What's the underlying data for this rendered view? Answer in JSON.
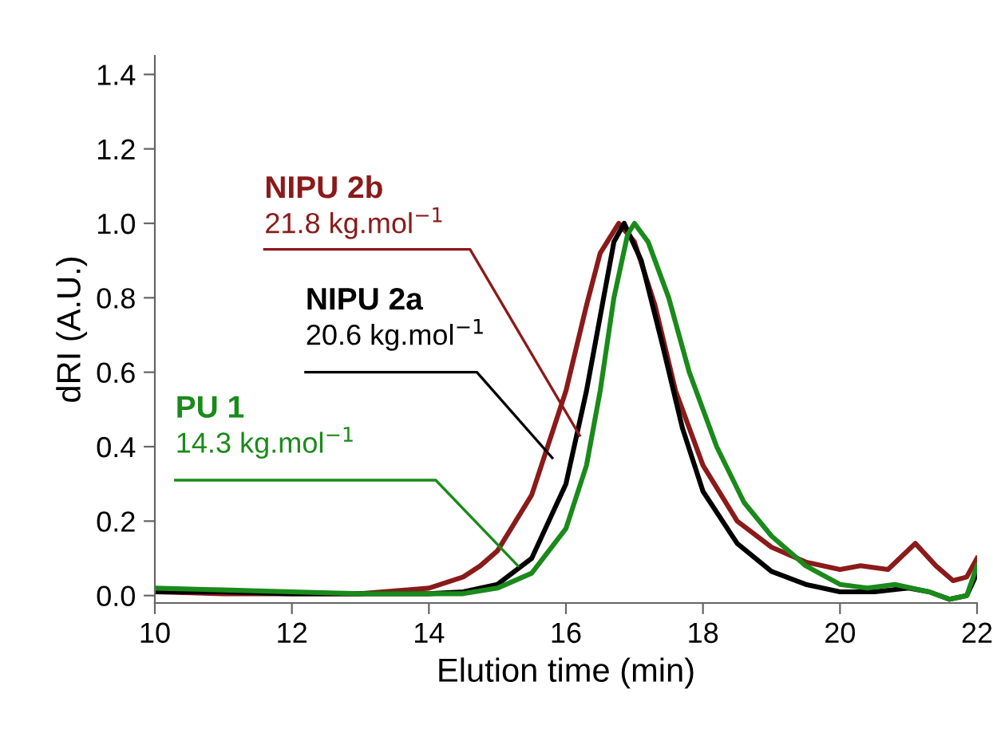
{
  "chart_data": {
    "type": "line",
    "xlabel": "Elution time (min)",
    "ylabel": "dRI (A.U.)",
    "xlim": [
      10,
      22
    ],
    "xticks": [
      10,
      12,
      14,
      16,
      18,
      20,
      22
    ],
    "ylim": [
      -0.02,
      1.45
    ],
    "yticks": [
      {
        "value": 0,
        "label": "0.0"
      },
      {
        "value": 0.2,
        "label": "0.2"
      },
      {
        "value": 0.4,
        "label": "0.4"
      },
      {
        "value": 0.6,
        "label": "0.6"
      },
      {
        "value": 0.8,
        "label": "0.8"
      },
      {
        "value": 1.0,
        "label": "1.0"
      },
      {
        "value": 1.2,
        "label": "1.2"
      },
      {
        "value": 1.4,
        "label": "1.4"
      }
    ],
    "grid": false,
    "legend": false,
    "marker": "none",
    "line_style": "solid",
    "series": [
      {
        "name": "NIPU 2b",
        "color": "#8b1a1a",
        "x": [
          10,
          11,
          12,
          13,
          14,
          14.5,
          14.75,
          15,
          15.5,
          16,
          16.3,
          16.5,
          16.77,
          17,
          17.3,
          17.6,
          18,
          18.5,
          19,
          19.5,
          20,
          20.3,
          20.7,
          21.1,
          21.4,
          21.65,
          21.85,
          22
        ],
        "values": [
          0.01,
          0.005,
          0.005,
          0.005,
          0.02,
          0.05,
          0.08,
          0.12,
          0.27,
          0.55,
          0.78,
          0.92,
          1.0,
          0.95,
          0.78,
          0.55,
          0.35,
          0.2,
          0.13,
          0.09,
          0.07,
          0.08,
          0.07,
          0.14,
          0.08,
          0.04,
          0.05,
          0.1
        ]
      },
      {
        "name": "NIPU 2a",
        "color": "#000000",
        "x": [
          10,
          11,
          12,
          13,
          14,
          14.5,
          15,
          15.5,
          16,
          16.3,
          16.5,
          16.7,
          16.85,
          17.1,
          17.4,
          17.7,
          18,
          18.5,
          19,
          19.5,
          20,
          20.5,
          21,
          21.3,
          21.6,
          21.85,
          22
        ],
        "values": [
          0.01,
          0.01,
          0.005,
          0.005,
          0.005,
          0.01,
          0.03,
          0.1,
          0.3,
          0.55,
          0.75,
          0.95,
          1.0,
          0.9,
          0.68,
          0.45,
          0.28,
          0.14,
          0.065,
          0.03,
          0.01,
          0.01,
          0.02,
          0.01,
          -0.01,
          0.0,
          0.06
        ]
      },
      {
        "name": "PU 1",
        "color": "#1a8a1a",
        "x": [
          10,
          11,
          12,
          13,
          14,
          14.5,
          15,
          15.5,
          16,
          16.3,
          16.5,
          16.7,
          16.9,
          17.0,
          17.2,
          17.5,
          17.8,
          18.2,
          18.6,
          19,
          19.5,
          20,
          20.4,
          20.8,
          21.3,
          21.6,
          21.85,
          22
        ],
        "values": [
          0.02,
          0.015,
          0.01,
          0.005,
          0.005,
          0.005,
          0.02,
          0.06,
          0.18,
          0.35,
          0.55,
          0.8,
          0.97,
          1.0,
          0.95,
          0.8,
          0.6,
          0.4,
          0.25,
          0.16,
          0.08,
          0.03,
          0.02,
          0.03,
          0.01,
          -0.01,
          0.0,
          0.08
        ]
      }
    ],
    "annotations": [
      {
        "text": "21.8 kg.mol$^{−1}$",
        "x": 16.2,
        "y": 0.43
      },
      {
        "text": "20.6 kg.mol$^{−1}$",
        "x": 15.8,
        "y": 0.37
      },
      {
        "text": "14.3 kg.mol$^{−1}$",
        "x": 15.3,
        "y": 0.08
      }
    ]
  }
}
